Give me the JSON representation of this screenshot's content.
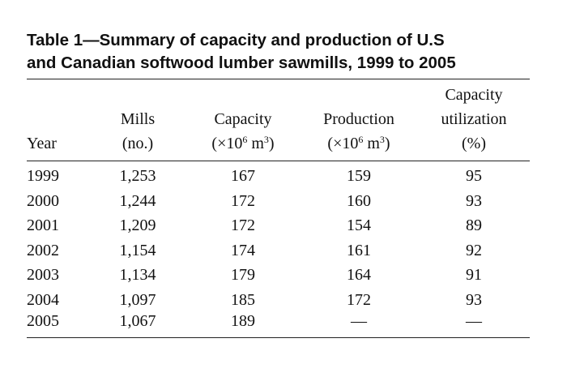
{
  "title": {
    "line1": "Table 1—Summary of capacity and production of U.S",
    "line2": "and Canadian softwood lumber sawmills, 1999 to 2005"
  },
  "headers": {
    "year": "Year",
    "mills": [
      "Mills",
      "(no.)"
    ],
    "capacity": [
      "Capacity",
      "(×10",
      "6",
      " m",
      "3",
      ")"
    ],
    "production": [
      "Production",
      "(×10",
      "6",
      " m",
      "3",
      ")"
    ],
    "utilization": [
      "Capacity",
      "utilization",
      "(%)"
    ]
  },
  "rows": [
    {
      "year": "1999",
      "mills": "1,253",
      "capacity": "167",
      "production": "159",
      "utilization": "95"
    },
    {
      "year": "2000",
      "mills": "1,244",
      "capacity": "172",
      "production": "160",
      "utilization": "93"
    },
    {
      "year": "2001",
      "mills": "1,209",
      "capacity": "172",
      "production": "154",
      "utilization": "89"
    },
    {
      "year": "2002",
      "mills": "1,154",
      "capacity": "174",
      "production": "161",
      "utilization": "92"
    },
    {
      "year": "2003",
      "mills": "1,134",
      "capacity": "179",
      "production": "164",
      "utilization": "91"
    },
    {
      "year": "2004",
      "mills": "1,097",
      "capacity": "185",
      "production": "172",
      "utilization": "93"
    },
    {
      "year": "2005",
      "mills": "1,067",
      "capacity": "189",
      "production": "—",
      "utilization": "—"
    }
  ]
}
